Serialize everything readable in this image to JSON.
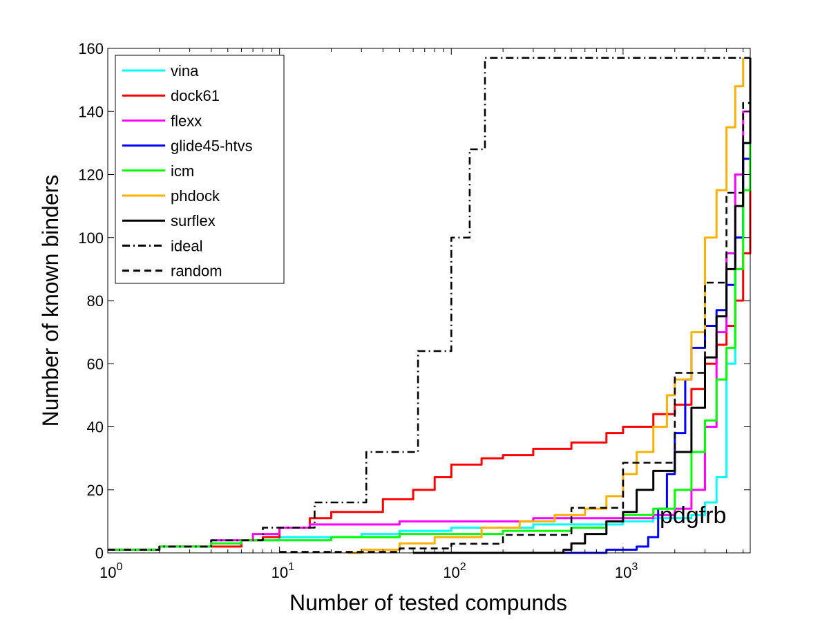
{
  "chart_data": {
    "type": "line",
    "xlabel": "Number of tested compunds",
    "ylabel": "Number of known binders",
    "xscale": "log",
    "xlim": [
      1,
      5500
    ],
    "ylim": [
      0,
      160
    ],
    "x_ticks": [
      {
        "value": 1,
        "base": "10",
        "exp": "0"
      },
      {
        "value": 10,
        "base": "10",
        "exp": "1"
      },
      {
        "value": 100,
        "base": "10",
        "exp": "2"
      },
      {
        "value": 1000,
        "base": "10",
        "exp": "3"
      }
    ],
    "y_ticks": [
      "0",
      "20",
      "40",
      "60",
      "80",
      "100",
      "120",
      "140",
      "160"
    ],
    "grid": false,
    "legend_position": "top-left",
    "annotation": "pdgfrb",
    "series": [
      {
        "name": "vina",
        "color": "#00ffff",
        "dash": "solid",
        "points": [
          [
            1,
            1
          ],
          [
            2,
            2
          ],
          [
            4,
            4
          ],
          [
            6,
            4
          ],
          [
            10,
            5
          ],
          [
            20,
            5
          ],
          [
            30,
            6
          ],
          [
            50,
            7
          ],
          [
            100,
            8
          ],
          [
            300,
            9
          ],
          [
            1000,
            10
          ],
          [
            1500,
            11
          ],
          [
            2500,
            12
          ],
          [
            3000,
            16
          ],
          [
            3500,
            24
          ],
          [
            4000,
            60
          ],
          [
            4500,
            100
          ],
          [
            5000,
            130
          ],
          [
            5500,
            150
          ]
        ]
      },
      {
        "name": "dock61",
        "color": "#ff0000",
        "dash": "solid",
        "points": [
          [
            1,
            1
          ],
          [
            2,
            2
          ],
          [
            4,
            2
          ],
          [
            6,
            4
          ],
          [
            8,
            5
          ],
          [
            10,
            8
          ],
          [
            15,
            11
          ],
          [
            20,
            13
          ],
          [
            40,
            17
          ],
          [
            60,
            20
          ],
          [
            80,
            24
          ],
          [
            100,
            28
          ],
          [
            150,
            30
          ],
          [
            200,
            31
          ],
          [
            300,
            33
          ],
          [
            500,
            35
          ],
          [
            800,
            38
          ],
          [
            1000,
            40
          ],
          [
            1500,
            44
          ],
          [
            2000,
            47
          ],
          [
            2500,
            52
          ],
          [
            3000,
            60
          ],
          [
            3500,
            66
          ],
          [
            4000,
            72
          ],
          [
            4500,
            80
          ],
          [
            5000,
            95
          ],
          [
            5500,
            115
          ]
        ]
      },
      {
        "name": "flexx",
        "color": "#ff00ff",
        "dash": "solid",
        "points": [
          [
            1,
            1
          ],
          [
            2,
            2
          ],
          [
            4,
            4
          ],
          [
            7,
            6
          ],
          [
            10,
            8
          ],
          [
            15,
            9
          ],
          [
            20,
            9
          ],
          [
            50,
            10
          ],
          [
            100,
            10
          ],
          [
            300,
            11
          ],
          [
            1000,
            11
          ],
          [
            1500,
            12
          ],
          [
            2000,
            14
          ],
          [
            2500,
            20
          ],
          [
            3000,
            40
          ],
          [
            3500,
            70
          ],
          [
            4000,
            95
          ],
          [
            4500,
            120
          ],
          [
            5000,
            140
          ],
          [
            5500,
            155
          ]
        ]
      },
      {
        "name": "glide45-htvs",
        "color": "#0000ff",
        "dash": "solid",
        "points": [
          [
            60,
            0
          ],
          [
            500,
            0
          ],
          [
            800,
            1
          ],
          [
            1200,
            2
          ],
          [
            1400,
            5
          ],
          [
            1600,
            14
          ],
          [
            1800,
            25
          ],
          [
            2000,
            38
          ],
          [
            2300,
            55
          ],
          [
            2500,
            65
          ],
          [
            3000,
            72
          ],
          [
            3500,
            77
          ],
          [
            4000,
            85
          ],
          [
            4500,
            100
          ],
          [
            5000,
            125
          ],
          [
            5500,
            145
          ]
        ]
      },
      {
        "name": "icm",
        "color": "#00ff00",
        "dash": "solid",
        "points": [
          [
            1,
            1
          ],
          [
            2,
            2
          ],
          [
            4,
            3
          ],
          [
            6,
            4
          ],
          [
            10,
            4
          ],
          [
            20,
            5
          ],
          [
            50,
            6
          ],
          [
            100,
            6
          ],
          [
            200,
            7
          ],
          [
            500,
            8
          ],
          [
            800,
            10
          ],
          [
            1000,
            12
          ],
          [
            1500,
            14
          ],
          [
            2000,
            20
          ],
          [
            2500,
            32
          ],
          [
            3000,
            42
          ],
          [
            3500,
            55
          ],
          [
            4000,
            65
          ],
          [
            4500,
            90
          ],
          [
            5000,
            115
          ],
          [
            5500,
            135
          ]
        ]
      },
      {
        "name": "phdock",
        "color": "#ffb000",
        "dash": "solid",
        "points": [
          [
            25,
            0
          ],
          [
            30,
            1
          ],
          [
            50,
            3
          ],
          [
            80,
            5
          ],
          [
            150,
            8
          ],
          [
            250,
            10
          ],
          [
            400,
            12
          ],
          [
            600,
            14
          ],
          [
            800,
            18
          ],
          [
            1000,
            25
          ],
          [
            1200,
            32
          ],
          [
            1500,
            40
          ],
          [
            1800,
            50
          ],
          [
            2000,
            55
          ],
          [
            2500,
            70
          ],
          [
            3000,
            100
          ],
          [
            3500,
            115
          ],
          [
            4000,
            135
          ],
          [
            4500,
            148
          ],
          [
            5000,
            157
          ]
        ]
      },
      {
        "name": "surflex",
        "color": "#000000",
        "dash": "solid",
        "points": [
          [
            60,
            0
          ],
          [
            400,
            0
          ],
          [
            450,
            1
          ],
          [
            500,
            3
          ],
          [
            600,
            6
          ],
          [
            800,
            10
          ],
          [
            1000,
            13
          ],
          [
            1200,
            20
          ],
          [
            1500,
            26
          ],
          [
            2000,
            32
          ],
          [
            2500,
            46
          ],
          [
            3000,
            62
          ],
          [
            3500,
            75
          ],
          [
            4000,
            90
          ],
          [
            4500,
            110
          ],
          [
            5000,
            130
          ],
          [
            5500,
            157
          ]
        ]
      },
      {
        "name": "ideal",
        "color": "#000000",
        "dash": "dashdot",
        "points": [
          [
            1,
            1
          ],
          [
            2,
            2
          ],
          [
            4,
            4
          ],
          [
            8,
            8
          ],
          [
            16,
            16
          ],
          [
            32,
            32
          ],
          [
            64,
            64
          ],
          [
            100,
            100
          ],
          [
            128,
            128
          ],
          [
            157,
            157
          ],
          [
            5500,
            157
          ]
        ]
      },
      {
        "name": "random",
        "color": "#000000",
        "dash": "dashed",
        "points": [
          [
            10,
            0.3
          ],
          [
            50,
            1.4
          ],
          [
            100,
            2.9
          ],
          [
            200,
            5.7
          ],
          [
            500,
            14.3
          ],
          [
            1000,
            28.6
          ],
          [
            2000,
            57.1
          ],
          [
            3000,
            85.7
          ],
          [
            4000,
            114.2
          ],
          [
            5000,
            142.7
          ],
          [
            5500,
            157
          ]
        ]
      }
    ]
  }
}
